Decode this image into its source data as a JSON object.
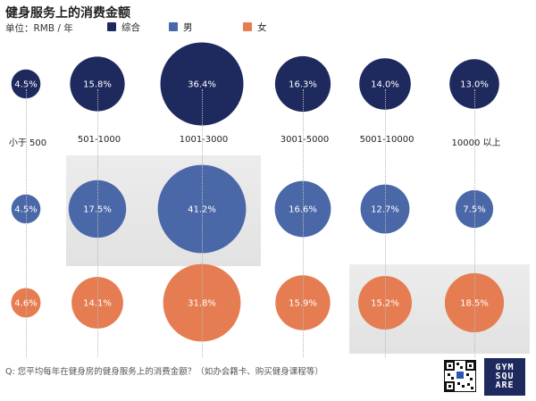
{
  "title": "健身服务上的消费金额",
  "unit": "单位：RMB / 年",
  "question": "Q: 您平均每年在健身房的健身服务上的消费金额？（如办会籍卡、购买健身课程等）",
  "logo_text": "GYM SQUARE",
  "colors": {
    "综合": "#1e2a5e",
    "男": "#4a67a8",
    "女": "#e67d52"
  },
  "chart_data": {
    "type": "bubble",
    "title": "健身服务上的消费金额",
    "unit": "单位：RMB / 年",
    "categories": [
      "小于 500",
      "501-1000",
      "1001-3000",
      "3001-5000",
      "5001-10000",
      "10000 以上"
    ],
    "series": [
      {
        "name": "综合",
        "color": "#1e2a5e",
        "values": [
          4.5,
          15.8,
          36.4,
          16.3,
          14.0,
          13.0
        ],
        "labels": [
          "4.5%",
          "15.8%",
          "36.4%",
          "16.3%",
          "14.0%",
          "13.0%"
        ]
      },
      {
        "name": "男",
        "color": "#4a67a8",
        "values": [
          4.5,
          17.5,
          41.2,
          16.6,
          12.7,
          7.5
        ],
        "labels": [
          "4.5%",
          "17.5%",
          "41.2%",
          "16.6%",
          "12.7%",
          "7.5%"
        ]
      },
      {
        "name": "女",
        "color": "#e67d52",
        "values": [
          4.6,
          14.1,
          31.8,
          15.9,
          15.2,
          18.5
        ],
        "labels": [
          "4.6%",
          "14.1%",
          "31.8%",
          "15.9%",
          "15.2%",
          "18.5%"
        ]
      }
    ],
    "highlights": [
      {
        "series": "男",
        "categories": [
          "501-1000",
          "1001-3000"
        ]
      },
      {
        "series": "女",
        "categories": [
          "5001-10000",
          "10000 以上"
        ]
      }
    ]
  }
}
